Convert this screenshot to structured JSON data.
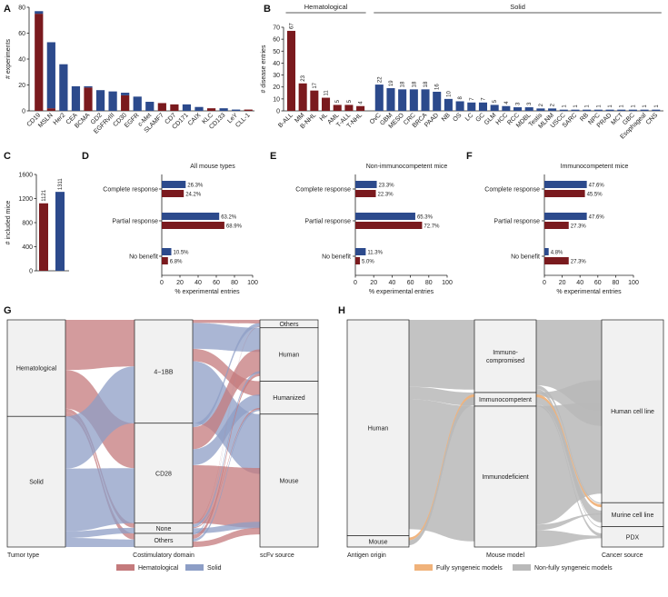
{
  "colors": {
    "heme": "#7a1a1e",
    "solid": "#2c4a8c",
    "heme_flow": "#c47a7c",
    "solid_flow": "#8d9ec6",
    "node_fill": "#f1f1f1",
    "grey_flow": "#b9b9b9",
    "orange_flow": "#f0b27a"
  },
  "chart_data": [
    {
      "panel": "A",
      "type": "bar",
      "ylabel": "# experiments",
      "ylim": [
        0,
        80
      ],
      "yticks": [
        "0",
        "20",
        "40",
        "60",
        "80"
      ],
      "categories": [
        "CD19",
        "MSLN",
        "Her2",
        "CEA",
        "BCMA",
        "GD2",
        "EGFRvIII",
        "CD30",
        "EGFR",
        "c-Met",
        "SLAMF7",
        "CD7",
        "CD171",
        "CAIX",
        "KLC",
        "CD133",
        "LeY",
        "CLL-1"
      ],
      "series": [
        {
          "name": "Hematological",
          "values": [
            75,
            2,
            0,
            0,
            18,
            0,
            0,
            12,
            0,
            0,
            6,
            5,
            0,
            0,
            2,
            0,
            0,
            1
          ]
        },
        {
          "name": "Solid",
          "values": [
            2,
            51,
            36,
            19,
            1,
            16,
            15,
            2,
            11,
            7,
            0,
            0,
            5,
            3,
            0,
            2,
            1,
            0
          ]
        }
      ]
    },
    {
      "panel": "B",
      "type": "bar",
      "ylabel": "# disease entries",
      "ylim": [
        0,
        70
      ],
      "yticks": [
        "0",
        "10",
        "20",
        "30",
        "40",
        "50",
        "60",
        "70"
      ],
      "group_labels": {
        "heme": "Hematological",
        "solid": "Solid"
      },
      "categories": [
        "B-ALL",
        "MM",
        "B-NHL",
        "HL",
        "AML",
        "T-ALL",
        "T-NHL",
        "OvC",
        "GBM",
        "MESO",
        "CRC",
        "BRCA",
        "PAAD",
        "NB",
        "OS",
        "LC",
        "GC",
        "GLM",
        "HCC",
        "RCC",
        "MDBL",
        "Testis",
        "MLNM",
        "USCC",
        "SARC",
        "RB",
        "NPC",
        "PRAD",
        "MCT",
        "GBC",
        "Esophageal",
        "CNS"
      ],
      "values": [
        67,
        23,
        17,
        11,
        5,
        5,
        4,
        22,
        19,
        18,
        18,
        18,
        16,
        10,
        8,
        7,
        7,
        5,
        4,
        3,
        3,
        2,
        2,
        1,
        1,
        1,
        1,
        1,
        1,
        1,
        1,
        1
      ],
      "labels": [
        "67",
        "23",
        "17",
        "11",
        "5",
        "5",
        "4",
        "22",
        "19",
        "18",
        "18",
        "18",
        "16",
        "10",
        "8",
        "7",
        "7",
        "5",
        "4",
        "3",
        "3",
        "2",
        "2",
        "1",
        "1",
        "1",
        "1",
        "1",
        "1",
        "1",
        "1",
        "1"
      ],
      "group": [
        "h",
        "h",
        "h",
        "h",
        "h",
        "h",
        "h",
        "s",
        "s",
        "s",
        "s",
        "s",
        "s",
        "s",
        "s",
        "s",
        "s",
        "s",
        "s",
        "s",
        "s",
        "s",
        "s",
        "s",
        "s",
        "s",
        "s",
        "s",
        "s",
        "s",
        "s",
        "s"
      ]
    },
    {
      "panel": "C",
      "type": "bar",
      "ylabel": "# included mice",
      "ylim": [
        0,
        1600
      ],
      "yticks": [
        "0",
        "400",
        "800",
        "1200",
        "1600"
      ],
      "categories": [
        "Hematological",
        "Solid"
      ],
      "values": [
        1121,
        1311
      ],
      "labels": [
        "1121",
        "1311"
      ]
    },
    {
      "panel": "D",
      "type": "bar",
      "orientation": "horizontal",
      "title": "All mouse types",
      "xlabel": "% experimental entries",
      "xlim": [
        0,
        100
      ],
      "xticks": [
        "0",
        "20",
        "40",
        "60",
        "80",
        "100"
      ],
      "categories": [
        "Complete response",
        "Partial response",
        "No benefit"
      ],
      "series": [
        {
          "name": "Solid",
          "values": [
            26.3,
            63.2,
            10.5
          ],
          "labels": [
            "26.3%",
            "63.2%",
            "10.5%"
          ]
        },
        {
          "name": "Hematological",
          "values": [
            24.2,
            68.9,
            6.8
          ],
          "labels": [
            "24.2%",
            "68.9%",
            "6.8%"
          ]
        }
      ]
    },
    {
      "panel": "E",
      "type": "bar",
      "orientation": "horizontal",
      "title": "Non-immunocompetent mice",
      "xlabel": "% experimental entries",
      "xlim": [
        0,
        100
      ],
      "xticks": [
        "0",
        "20",
        "40",
        "60",
        "80",
        "100"
      ],
      "categories": [
        "Complete response",
        "Partial response",
        "No benefit"
      ],
      "series": [
        {
          "name": "Solid",
          "values": [
            23.3,
            65.3,
            11.3
          ],
          "labels": [
            "23.3%",
            "65.3%",
            "11.3%"
          ]
        },
        {
          "name": "Hematological",
          "values": [
            22.3,
            72.7,
            5.0
          ],
          "labels": [
            "22.3%",
            "72.7%",
            "5.0%"
          ]
        }
      ]
    },
    {
      "panel": "F",
      "type": "bar",
      "orientation": "horizontal",
      "title": "Immunocompetent mice",
      "xlabel": "% experimental entries",
      "xlim": [
        0,
        100
      ],
      "xticks": [
        "0",
        "20",
        "40",
        "60",
        "80",
        "100"
      ],
      "categories": [
        "Complete response",
        "Partial response",
        "No benefit"
      ],
      "series": [
        {
          "name": "Solid",
          "values": [
            47.6,
            47.6,
            4.8
          ],
          "labels": [
            "47.6%",
            "47.6%",
            "4.8%"
          ]
        },
        {
          "name": "Hematological",
          "values": [
            45.5,
            27.3,
            27.3
          ],
          "labels": [
            "45.5%",
            "27.3%",
            "27.3%"
          ]
        }
      ]
    },
    {
      "panel": "G",
      "type": "sankey",
      "axes": [
        "Tumor type",
        "Costimulatory domain",
        "scFv source"
      ],
      "nodes": [
        {
          "name": "Hematological",
          "axis": 0,
          "share": 0.425
        },
        {
          "name": "Solid",
          "axis": 0,
          "share": 0.575
        },
        {
          "name": "4−1BB",
          "axis": 1,
          "share": 0.455
        },
        {
          "name": "CD28",
          "axis": 1,
          "share": 0.44
        },
        {
          "name": "None",
          "axis": 1,
          "share": 0.045
        },
        {
          "name": "Others",
          "axis": 1,
          "share": 0.06
        },
        {
          "name": "Others",
          "axis": 2,
          "share": 0.035
        },
        {
          "name": "Human",
          "axis": 2,
          "share": 0.235
        },
        {
          "name": "Humanized",
          "axis": 2,
          "share": 0.145
        },
        {
          "name": "Mouse",
          "axis": 2,
          "share": 0.585
        }
      ],
      "legend": [
        "Hematological",
        "Solid"
      ]
    },
    {
      "panel": "H",
      "type": "sankey",
      "axes": [
        "Antigen origin",
        "Mouse model",
        "Cancer source"
      ],
      "nodes": [
        {
          "name": "Human",
          "axis": 0,
          "share": 0.95
        },
        {
          "name": "Mouse",
          "axis": 0,
          "share": 0.05
        },
        {
          "name": "Immuno-\ncompromised",
          "axis": 1,
          "share": 0.32
        },
        {
          "name": "Immunocompetent",
          "axis": 1,
          "share": 0.06
        },
        {
          "name": "Immunodeficient",
          "axis": 1,
          "share": 0.62
        },
        {
          "name": "Human cell line",
          "axis": 2,
          "share": 0.805
        },
        {
          "name": "Murine cell line",
          "axis": 2,
          "share": 0.105
        },
        {
          "name": "PDX",
          "axis": 2,
          "share": 0.09
        }
      ],
      "legend": [
        "Fully syngeneic models",
        "Non-fully syngeneic models"
      ]
    }
  ]
}
